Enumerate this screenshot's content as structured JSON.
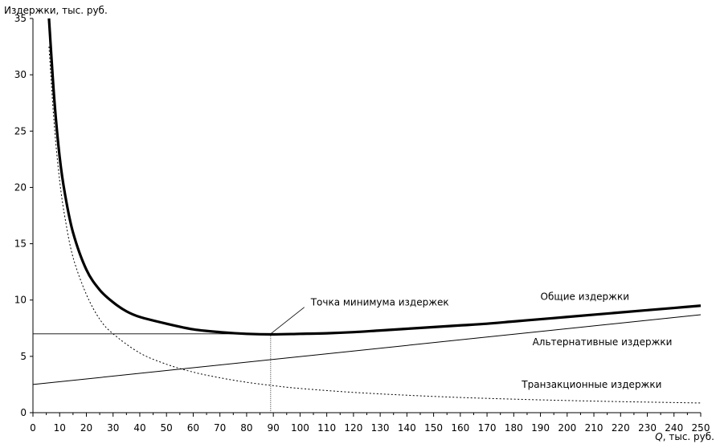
{
  "chart_data": {
    "type": "line",
    "title": "",
    "ylabel": "Издержки, тыс. руб.",
    "xlabel_var": "Q",
    "xlabel_rest": ", тыс. руб.",
    "xlim": [
      0,
      250
    ],
    "ylim": [
      0,
      35
    ],
    "xticks": [
      0,
      10,
      20,
      30,
      40,
      50,
      60,
      70,
      80,
      90,
      100,
      110,
      120,
      130,
      140,
      150,
      160,
      170,
      180,
      190,
      200,
      210,
      220,
      230,
      240,
      250
    ],
    "yticks": [
      0,
      5,
      10,
      15,
      20,
      25,
      30,
      35
    ],
    "grid": false,
    "legend": "none",
    "series": [
      {
        "name": "Общие издержки",
        "style": "thick",
        "x": [
          6,
          8,
          10,
          12,
          15,
          20,
          25,
          30,
          35,
          40,
          50,
          60,
          70,
          80,
          90,
          100,
          110,
          120,
          130,
          140,
          150,
          160,
          170,
          180,
          190,
          200,
          210,
          220,
          230,
          240,
          250
        ],
        "y": [
          35.0,
          27.8,
          22.7,
          19.4,
          16.0,
          12.7,
          10.9,
          9.8,
          9.0,
          8.5,
          7.9,
          7.4,
          7.15,
          7.0,
          6.95,
          7.0,
          7.05,
          7.15,
          7.3,
          7.45,
          7.6,
          7.75,
          7.9,
          8.1,
          8.3,
          8.5,
          8.7,
          8.9,
          9.1,
          9.3,
          9.5
        ]
      },
      {
        "name": "Альтернативные издержки",
        "style": "thin",
        "x": [
          0,
          250
        ],
        "y": [
          2.5,
          8.7
        ]
      },
      {
        "name": "Транзакционные издержки",
        "style": "dotted",
        "x": [
          6,
          8,
          10,
          12,
          15,
          20,
          25,
          30,
          40,
          50,
          60,
          70,
          80,
          90,
          100,
          120,
          140,
          160,
          180,
          200,
          220,
          250
        ],
        "y": [
          32.5,
          25.5,
          20.6,
          17.3,
          13.8,
          10.5,
          8.3,
          7.0,
          5.3,
          4.3,
          3.6,
          3.1,
          2.7,
          2.4,
          2.15,
          1.8,
          1.55,
          1.35,
          1.2,
          1.08,
          0.98,
          0.86
        ]
      }
    ],
    "minimum_point": {
      "x": 89,
      "y": 7.0
    },
    "annotations": [
      {
        "text": "Точка минимума издержек",
        "target_x": 89,
        "target_y": 7.0,
        "anchor_x": 104,
        "anchor_y": 9.5
      },
      {
        "text": "Общие издержки",
        "anchor_x": 190,
        "anchor_y": 10.0
      },
      {
        "text": "Альтернативные издержки",
        "anchor_x": 187,
        "anchor_y": 6.0
      },
      {
        "text": "Транзакционные издержки",
        "anchor_x": 183,
        "anchor_y": 2.2
      }
    ]
  }
}
